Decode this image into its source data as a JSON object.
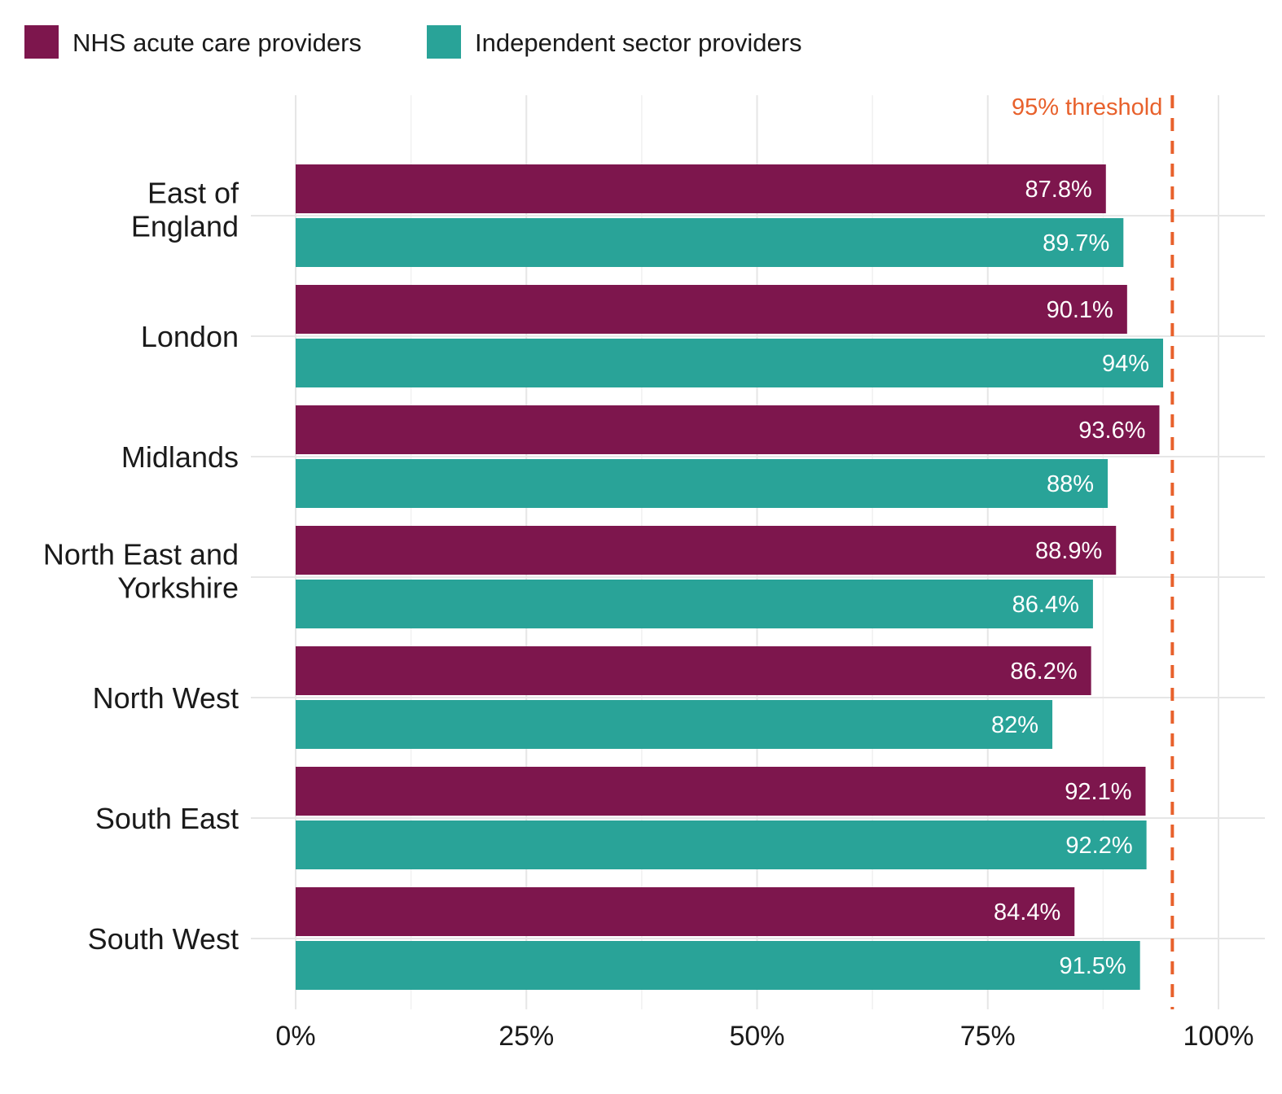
{
  "chart_data": {
    "type": "bar",
    "orientation": "horizontal",
    "categories": [
      [
        "East of",
        "England"
      ],
      [
        "London"
      ],
      [
        "Midlands"
      ],
      [
        "North East and",
        "Yorkshire"
      ],
      [
        "North West"
      ],
      [
        "South East"
      ],
      [
        "South West"
      ]
    ],
    "series": [
      {
        "name": "NHS acute care providers",
        "color": "#7d164d",
        "values": [
          87.8,
          90.1,
          93.6,
          88.9,
          86.2,
          92.1,
          84.4
        ],
        "labels": [
          "87.8%",
          "90.1%",
          "93.6%",
          "88.9%",
          "86.2%",
          "92.1%",
          "84.4%"
        ]
      },
      {
        "name": "Independent sector providers",
        "color": "#29a398",
        "values": [
          89.7,
          94.0,
          88.0,
          86.4,
          82.0,
          92.2,
          91.5
        ],
        "labels": [
          "89.7%",
          "94%",
          "88%",
          "86.4%",
          "82%",
          "92.2%",
          "91.5%"
        ]
      }
    ],
    "x_ticks": [
      0,
      25,
      50,
      75,
      100
    ],
    "x_tick_labels": [
      "0%",
      "25%",
      "50%",
      "75%",
      "100%"
    ],
    "xlim": [
      0,
      100
    ],
    "grid": true,
    "legend_position": "top-left",
    "threshold": {
      "value": 95,
      "label": "95% threshold",
      "color": "#e8612c",
      "style": "dashed"
    },
    "title": "",
    "xlabel": "",
    "ylabel": ""
  }
}
